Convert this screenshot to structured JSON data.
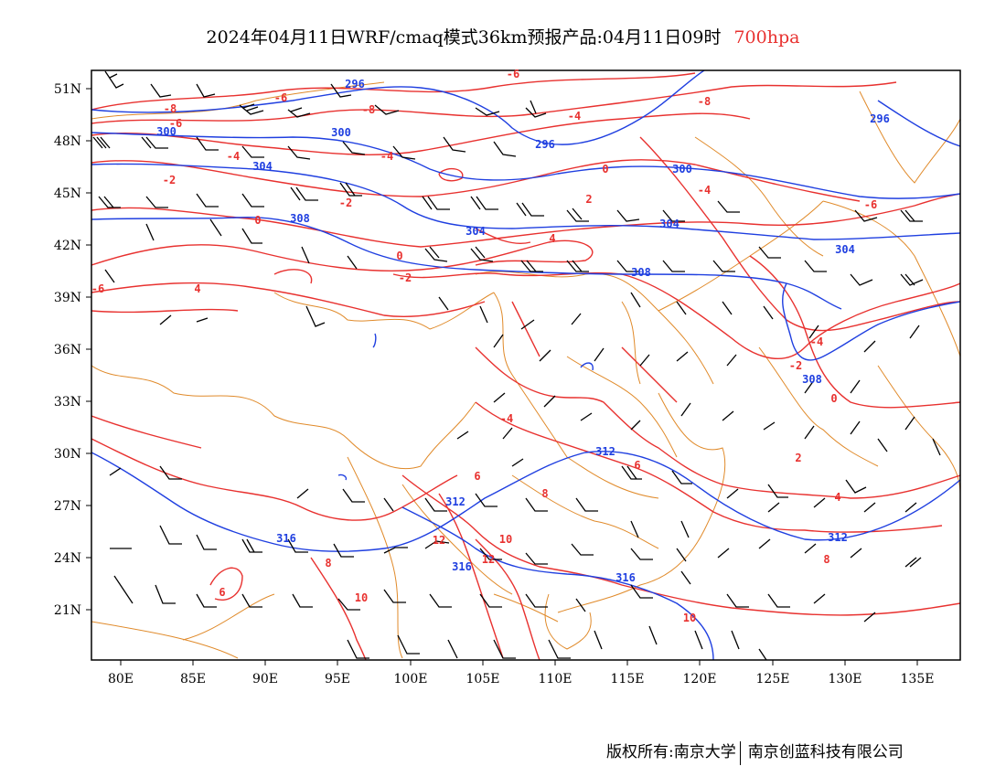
{
  "title": {
    "text": "2024年04月11日WRF/cmaq模式36km预报产品:04月11日09时",
    "level": "700hpa",
    "level_color": "#e8312f"
  },
  "colors": {
    "temperature_contour": "#e8312f",
    "height_contour": "#1f3fe0",
    "boundary": "#e08a2a",
    "wind_barb": "#000000"
  },
  "axes": {
    "lat_labels": [
      "51N",
      "48N",
      "45N",
      "42N",
      "39N",
      "36N",
      "33N",
      "30N",
      "27N",
      "24N",
      "21N"
    ],
    "lon_labels": [
      "80E",
      "85E",
      "90E",
      "95E",
      "100E",
      "105E",
      "110E",
      "115E",
      "120E",
      "125E",
      "130E",
      "135E"
    ]
  },
  "height_labels": [
    "296",
    "296",
    "300",
    "300",
    "300",
    "304",
    "304",
    "304",
    "304",
    "308",
    "308",
    "308",
    "312",
    "312",
    "312",
    "316",
    "316",
    "316",
    "296"
  ],
  "temp_labels": [
    "-8",
    "-8",
    "-6",
    "-6",
    "-6",
    "-8",
    "-4",
    "-4",
    "-4",
    "-2",
    "-2",
    "-2",
    "0",
    "0",
    "0",
    "0",
    "2",
    "2",
    "-4",
    "-4",
    "4",
    "4",
    "4",
    "6",
    "6",
    "6",
    "8",
    "8",
    "8",
    "10",
    "10",
    "10",
    "12",
    "12",
    "-6",
    "-4",
    "-2",
    "-6"
  ],
  "footer": {
    "copyright": "版权所有:南京大学",
    "company": "南京创蓝科技有限公司"
  }
}
